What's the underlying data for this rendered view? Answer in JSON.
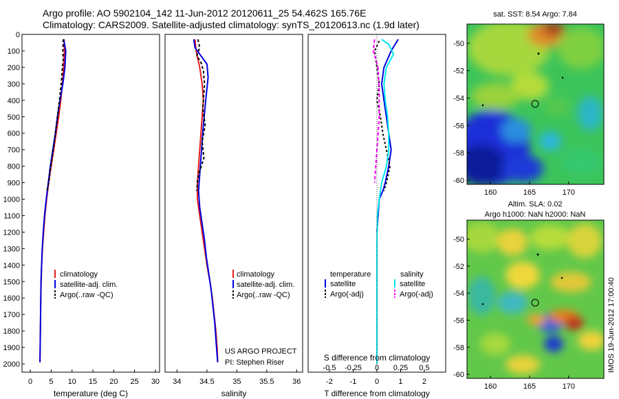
{
  "header": {
    "line1": "Argo profile: AO 5902104_142 11-Jun-2012 20120611_25 54.462S 165.76E",
    "line2": "Climatology: CARS2009. Satellite-adjusted climatology: synTS_20120613.nc (1.9d later)"
  },
  "colors": {
    "climatology": "#e41a1c",
    "satellite": "#0000dd",
    "argo": "#000000",
    "salinity_satellite": "#00e5ee",
    "salinity_argo": "#ff00ff"
  },
  "chart_data": [
    {
      "type": "line",
      "id": "temperature",
      "xlabel": "temperature (deg C)",
      "xticks": [
        "0",
        "5",
        "10",
        "15",
        "20",
        "25",
        "30"
      ],
      "xlim": [
        -2,
        31
      ],
      "ylim": [
        0,
        2050
      ],
      "yticks": [
        "0",
        "100",
        "200",
        "300",
        "400",
        "500",
        "600",
        "700",
        "800",
        "900",
        "1000",
        "1100",
        "1200",
        "1300",
        "1400",
        "1500",
        "1600",
        "1700",
        "1800",
        "1900",
        "2000"
      ],
      "legend": [
        "climatology",
        "satellite-adj. clim.",
        "Argo(..raw -QC)"
      ],
      "series": [
        {
          "name": "climatology",
          "color": "#e41a1c",
          "dash": "",
          "points": [
            [
              8.1,
              30
            ],
            [
              8.2,
              100
            ],
            [
              8.0,
              200
            ],
            [
              7.7,
              300
            ],
            [
              7.3,
              400
            ],
            [
              6.8,
              500
            ],
            [
              6.2,
              600
            ],
            [
              5.6,
              700
            ],
            [
              5.0,
              800
            ],
            [
              4.4,
              900
            ],
            [
              3.9,
              1000
            ],
            [
              3.5,
              1100
            ],
            [
              3.2,
              1200
            ],
            [
              2.9,
              1300
            ],
            [
              2.7,
              1400
            ],
            [
              2.6,
              1500
            ],
            [
              2.5,
              1600
            ],
            [
              2.45,
              1700
            ],
            [
              2.4,
              1800
            ],
            [
              2.35,
              1900
            ],
            [
              2.3,
              1990
            ]
          ]
        },
        {
          "name": "satellite-adj. clim.",
          "color": "#0000dd",
          "dash": "",
          "points": [
            [
              8.0,
              30
            ],
            [
              8.5,
              100
            ],
            [
              8.3,
              200
            ],
            [
              7.8,
              300
            ],
            [
              7.1,
              400
            ],
            [
              6.5,
              500
            ],
            [
              6.0,
              600
            ],
            [
              5.4,
              700
            ],
            [
              4.8,
              800
            ],
            [
              4.3,
              900
            ],
            [
              3.8,
              1000
            ],
            [
              3.4,
              1100
            ],
            [
              3.1,
              1200
            ],
            [
              2.85,
              1300
            ],
            [
              2.7,
              1400
            ],
            [
              2.55,
              1500
            ],
            [
              2.5,
              1600
            ],
            [
              2.45,
              1700
            ],
            [
              2.4,
              1800
            ],
            [
              2.35,
              1900
            ],
            [
              2.3,
              1990
            ]
          ]
        },
        {
          "name": "Argo(..raw -QC)",
          "color": "#000000",
          "dash": "4,3",
          "points": [
            [
              7.9,
              30
            ],
            [
              7.8,
              100
            ],
            [
              7.9,
              150
            ],
            [
              7.7,
              200
            ],
            [
              7.4,
              300
            ],
            [
              7.0,
              400
            ],
            [
              6.5,
              500
            ],
            [
              6.0,
              600
            ],
            [
              5.5,
              700
            ],
            [
              4.9,
              800
            ],
            [
              4.4,
              900
            ],
            [
              4.0,
              950
            ]
          ]
        }
      ]
    },
    {
      "type": "line",
      "id": "salinity",
      "xlabel": "salinity",
      "xticks": [
        "34",
        "34.5",
        "35",
        "35.5",
        "36"
      ],
      "xlim": [
        33.8,
        36.1
      ],
      "ylim": [
        0,
        2050
      ],
      "legend": [
        "climatology",
        "satellite-adj. clim.",
        "Argo(..raw -QC)"
      ],
      "annotation": [
        "US ARGO PROJECT",
        "PI: Stephen Riser"
      ],
      "series": [
        {
          "name": "climatology",
          "color": "#e41a1c",
          "dash": "",
          "points": [
            [
              34.3,
              30
            ],
            [
              34.32,
              100
            ],
            [
              34.38,
              200
            ],
            [
              34.42,
              300
            ],
            [
              34.44,
              400
            ],
            [
              34.42,
              500
            ],
            [
              34.4,
              600
            ],
            [
              34.38,
              700
            ],
            [
              34.36,
              800
            ],
            [
              34.34,
              900
            ],
            [
              34.34,
              1000
            ],
            [
              34.38,
              1100
            ],
            [
              34.42,
              1200
            ],
            [
              34.46,
              1300
            ],
            [
              34.5,
              1400
            ],
            [
              34.55,
              1500
            ],
            [
              34.59,
              1600
            ],
            [
              34.62,
              1700
            ],
            [
              34.65,
              1800
            ],
            [
              34.67,
              1900
            ],
            [
              34.68,
              1990
            ]
          ]
        },
        {
          "name": "satellite-adj. clim.",
          "color": "#0000dd",
          "dash": "",
          "points": [
            [
              34.28,
              30
            ],
            [
              34.3,
              80
            ],
            [
              34.5,
              180
            ],
            [
              34.52,
              260
            ],
            [
              34.48,
              400
            ],
            [
              34.44,
              550
            ],
            [
              34.42,
              650
            ],
            [
              34.4,
              750
            ],
            [
              34.38,
              850
            ],
            [
              34.36,
              950
            ],
            [
              34.38,
              1050
            ],
            [
              34.42,
              1150
            ],
            [
              34.46,
              1250
            ],
            [
              34.49,
              1350
            ],
            [
              34.53,
              1450
            ],
            [
              34.57,
              1550
            ],
            [
              34.6,
              1650
            ],
            [
              34.63,
              1750
            ],
            [
              34.65,
              1850
            ],
            [
              34.67,
              1950
            ],
            [
              34.68,
              1990
            ]
          ]
        },
        {
          "name": "Argo(..raw -QC)",
          "color": "#000000",
          "dash": "4,3",
          "points": [
            [
              34.35,
              30
            ],
            [
              34.38,
              80
            ],
            [
              34.33,
              130
            ],
            [
              34.4,
              170
            ],
            [
              34.44,
              220
            ],
            [
              34.46,
              300
            ],
            [
              34.43,
              450
            ],
            [
              34.47,
              550
            ],
            [
              34.42,
              650
            ],
            [
              34.45,
              750
            ],
            [
              34.36,
              850
            ],
            [
              34.34,
              900
            ],
            [
              34.33,
              950
            ]
          ]
        }
      ]
    },
    {
      "type": "line",
      "id": "difference",
      "xlabel": "T difference from climatology",
      "xlabel_top": "S difference from climatology",
      "xticks": [
        "-2",
        "-1",
        "0",
        "1",
        "2"
      ],
      "xticks_top": [
        "-0.5",
        "-0.25",
        "0",
        "0.25",
        "0.5"
      ],
      "xlim": [
        -2.9,
        2.9
      ],
      "ylim": [
        0,
        2050
      ],
      "legend_headers": [
        "temperature",
        "salinity"
      ],
      "legend_temperature": [
        "satellite",
        "Argo(-adj)"
      ],
      "legend_salinity": [
        "satellite",
        "Argo(-adj)"
      ],
      "series": [
        {
          "name": "satellite",
          "group": "temperature",
          "color": "#0000dd",
          "dash": "",
          "points": [
            [
              0.9,
              30
            ],
            [
              0.6,
              100
            ],
            [
              0.3,
              200
            ],
            [
              0.2,
              300
            ],
            [
              0.3,
              400
            ],
            [
              0.4,
              500
            ],
            [
              0.5,
              600
            ],
            [
              0.6,
              700
            ],
            [
              0.5,
              800
            ],
            [
              0.35,
              900
            ],
            [
              0.25,
              950
            ],
            [
              0.1,
              1000
            ],
            [
              0.05,
              1100
            ],
            [
              0.0,
              1200
            ]
          ]
        },
        {
          "name": "Argo(-adj)",
          "group": "temperature",
          "color": "#000000",
          "dash": "3,3",
          "points": [
            [
              0.1,
              40
            ],
            [
              -0.1,
              100
            ],
            [
              0.0,
              200
            ],
            [
              0.1,
              300
            ],
            [
              0.0,
              400
            ],
            [
              0.15,
              500
            ],
            [
              0.25,
              600
            ],
            [
              0.4,
              700
            ],
            [
              0.55,
              800
            ],
            [
              0.4,
              900
            ],
            [
              0.3,
              950
            ]
          ]
        },
        {
          "name": "satellite",
          "group": "salinity",
          "color": "#00e5ee",
          "dash": "",
          "points": [
            [
              0.2,
              30
            ],
            [
              0.5,
              60
            ],
            [
              0.7,
              120
            ],
            [
              0.4,
              200
            ],
            [
              0.3,
              300
            ],
            [
              0.35,
              400
            ],
            [
              0.45,
              500
            ],
            [
              0.5,
              600
            ],
            [
              0.5,
              700
            ],
            [
              0.4,
              800
            ],
            [
              0.2,
              900
            ],
            [
              0.1,
              1000
            ],
            [
              0.02,
              1100
            ],
            [
              0.0,
              1300
            ],
            [
              0.0,
              1600
            ],
            [
              0.0,
              2000
            ]
          ]
        },
        {
          "name": "Argo(-adj)",
          "group": "salinity",
          "color": "#ff00ff",
          "dash": "5,3",
          "points": [
            [
              -0.1,
              30
            ],
            [
              -0.15,
              100
            ],
            [
              -0.05,
              150
            ],
            [
              0.05,
              200
            ],
            [
              0.1,
              350
            ],
            [
              0.1,
              500
            ],
            [
              0.05,
              600
            ],
            [
              0.0,
              700
            ],
            [
              -0.05,
              800
            ],
            [
              -0.1,
              900
            ]
          ]
        }
      ]
    },
    {
      "type": "heatmap",
      "id": "sst-map",
      "title": "sat. SST: 8.54 Argo: 7.84",
      "xticks": [
        "160",
        "165",
        "170"
      ],
      "yticks": [
        "-50",
        "-52",
        "-54",
        "-56",
        "-58",
        "-60"
      ],
      "xlim": [
        157,
        174.5
      ],
      "ylim": [
        -60.3,
        -48.6
      ]
    },
    {
      "type": "heatmap",
      "id": "sla-map",
      "title_line1": "Altim. SLA: 0.02",
      "title_line2": "Argo h1000: NaN h2000: NaN",
      "xticks": [
        "160",
        "165",
        "170"
      ],
      "yticks": [
        "-50",
        "-52",
        "-54",
        "-56",
        "-58",
        "-60"
      ],
      "xlim": [
        157,
        174.5
      ],
      "ylim": [
        -60.3,
        -48.6
      ],
      "side_label": "IMOS 19-Jun-2012 17:00:40"
    }
  ]
}
